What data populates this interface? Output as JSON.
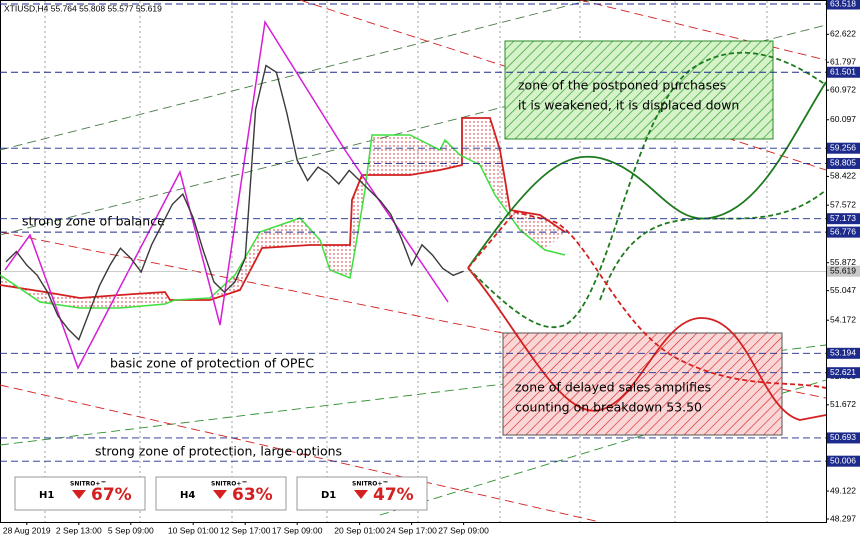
{
  "chart_data": {
    "type": "line",
    "header": "XTIUSD,H4  55.764 55.808 55.577 55.619",
    "categories": [
      null,
      null,
      "28 Aug 2019",
      null,
      null,
      null,
      null,
      "2 Sep 13:00",
      null,
      null,
      null,
      null,
      "5 Sep 09:00",
      null,
      null,
      null,
      null,
      null,
      "10 Sep 01:00",
      null,
      null,
      null,
      null,
      "12 Sep 17:00",
      null,
      null,
      null,
      null,
      "17 Sep 09:00",
      null,
      null,
      null,
      null,
      null,
      "20 Sep 01:00",
      null,
      null,
      null,
      null,
      "24 Sep 17:00",
      null,
      null,
      null,
      null,
      "27 Sep 09:00"
    ],
    "values": [
      55.9,
      56.2,
      55.8,
      55.5,
      55.0,
      54.3,
      53.9,
      53.6,
      54.4,
      55.2,
      55.8,
      56.3,
      56.0,
      55.6,
      56.4,
      57.0,
      57.6,
      57.9,
      57.2,
      56.2,
      55.3,
      55.0,
      55.3,
      56.0,
      60.4,
      61.7,
      61.5,
      60.3,
      58.9,
      58.3,
      58.7,
      58.5,
      58.2,
      58.6,
      58.3,
      58.0,
      57.7,
      57.3,
      56.6,
      55.8,
      56.4,
      56.1,
      55.7,
      55.5,
      55.619
    ],
    "color": "#3a3a3a",
    "ylim": [
      48.297,
      63.518
    ],
    "yticks": [
      62.622,
      61.797,
      60.972,
      60.097,
      58.422,
      57.572,
      55.872,
      55.047,
      54.172,
      53.247,
      52.495,
      51.672,
      49.122,
      48.297
    ],
    "levels": [
      63.518,
      61.501,
      59.256,
      58.805,
      57.173,
      56.776,
      53.194,
      52.621,
      50.693,
      50.006
    ],
    "level_color": "#1c2a8c",
    "current_price": 55.619,
    "annotations": {
      "balance": "strong zone of balance",
      "opec": "basic zone of protection of OPEC",
      "options": "strong zone of protection, large options",
      "purchases": [
        "zone of the postponed purchases",
        "it is weakened, it is displaced down"
      ],
      "sales": [
        "zone of delayed sales amplifies",
        "counting on breakdown 53.50"
      ]
    },
    "badges": [
      {
        "timeframe": "H1",
        "brand": "SNITRO+™",
        "percent": "67%"
      },
      {
        "timeframe": "H4",
        "brand": "SNITRO+™",
        "percent": "63%"
      },
      {
        "timeframe": "D1",
        "brand": "SNITRO+™",
        "percent": "47%"
      }
    ]
  }
}
